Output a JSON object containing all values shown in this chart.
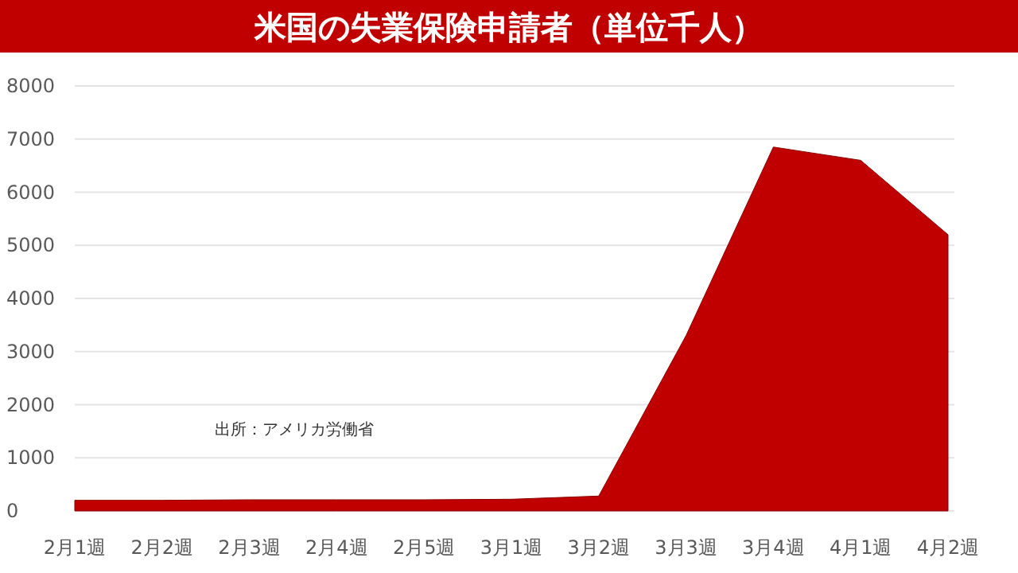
{
  "chart_data": {
    "type": "area",
    "title": "米国の失業保険申請者（単位千人）",
    "categories": [
      "2月1週",
      "2月2週",
      "2月3週",
      "2月4週",
      "2月5週",
      "3月1週",
      "3月2週",
      "3月3週",
      "3月4週",
      "4月1週",
      "4月2週"
    ],
    "series": [
      {
        "color": "#c00000",
        "values": [
          200,
          200,
          210,
          210,
          210,
          220,
          280,
          3300,
          6850,
          6600,
          5200
        ]
      }
    ],
    "ylim": [
      0,
      8000
    ],
    "yticks": [
      0,
      1000,
      2000,
      3000,
      4000,
      5000,
      6000,
      7000,
      8000
    ],
    "grid": "y",
    "annotations": [
      "出所：アメリカ労働省"
    ]
  }
}
